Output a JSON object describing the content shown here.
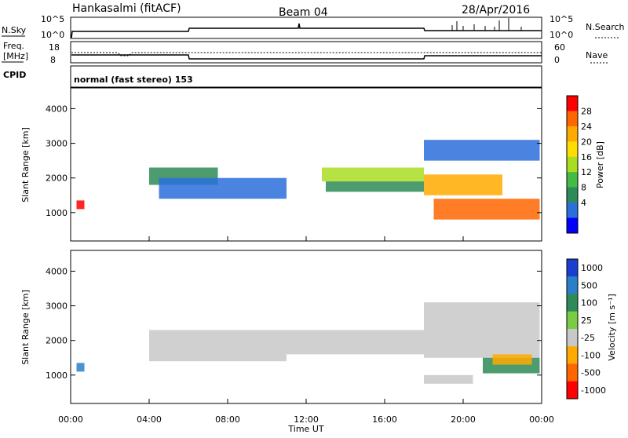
{
  "header": {
    "title": "Hankasalmi (fitACF)",
    "beam": "Beam 04",
    "date": "28/Apr/2016"
  },
  "strips": {
    "nsky_label": "N.Sky",
    "nsearch_label": "N.Search",
    "nsky_ticks": [
      "10^5",
      "10^0"
    ],
    "freq_label_1": "Freq.",
    "freq_label_2": "[MHz]",
    "freq_ticks": [
      "18",
      "8"
    ],
    "nave_label": "Nave",
    "nave_ticks": [
      "60",
      "0"
    ],
    "cpid_label": "CPID",
    "cpid_text": "normal (fast stereo) 153"
  },
  "axes": {
    "ylabel": "Slant Range [km]",
    "yticks": [
      "4000",
      "3000",
      "2000",
      "1000"
    ],
    "xlabel": "Time UT",
    "xticks": [
      "00:00",
      "04:00",
      "08:00",
      "12:00",
      "16:00",
      "20:00",
      "00:00"
    ]
  },
  "power_scale": {
    "label": "Power [dB]",
    "ticks": [
      "28",
      "24",
      "20",
      "16",
      "12",
      "8",
      "4"
    ],
    "colors": [
      "#ff0000",
      "#ff6600",
      "#ffaa00",
      "#ffdd00",
      "#aadd22",
      "#44bb44",
      "#2e8b57",
      "#2a6fdb",
      "#0000ff"
    ]
  },
  "velocity_scale": {
    "label": "Velocity [m s⁻¹]",
    "ticks": [
      "1000",
      "500",
      "100",
      "25",
      "-25",
      "-100",
      "-500",
      "-1000"
    ],
    "colors": [
      "#1a3fd0",
      "#2a80c8",
      "#2e8b57",
      "#7acc44",
      "#c8c8c8",
      "#ffaa00",
      "#ff6600",
      "#ff0000"
    ]
  },
  "chart_data": [
    {
      "type": "heatmap",
      "panel": "power",
      "ylim": [
        180,
        4600
      ],
      "xlim": [
        0,
        24
      ],
      "regions": [
        {
          "t0": 4.0,
          "t1": 7.5,
          "r0": 1800,
          "r1": 2300,
          "color": "#2e8b57"
        },
        {
          "t0": 4.5,
          "t1": 11.0,
          "r0": 1400,
          "r1": 2000,
          "color": "#2a6fdb"
        },
        {
          "t0": 12.8,
          "t1": 18.0,
          "r0": 1900,
          "r1": 2300,
          "color": "#aadd22"
        },
        {
          "t0": 13.0,
          "t1": 18.0,
          "r0": 1600,
          "r1": 1900,
          "color": "#2e8b57"
        },
        {
          "t0": 18.0,
          "t1": 22.0,
          "r0": 1500,
          "r1": 2100,
          "color": "#ffaa00"
        },
        {
          "t0": 18.0,
          "t1": 23.9,
          "r0": 2500,
          "r1": 3100,
          "color": "#2a6fdb"
        },
        {
          "t0": 18.5,
          "t1": 23.9,
          "r0": 800,
          "r1": 1400,
          "color": "#ff6600"
        },
        {
          "t0": 0.3,
          "t1": 0.7,
          "r0": 1100,
          "r1": 1350,
          "color": "#ff0000"
        }
      ]
    },
    {
      "type": "heatmap",
      "panel": "velocity",
      "ylim": [
        180,
        4600
      ],
      "xlim": [
        0,
        24
      ],
      "regions": [
        {
          "t0": 4.0,
          "t1": 11.0,
          "r0": 1400,
          "r1": 2300,
          "color": "#c8c8c8"
        },
        {
          "t0": 11.0,
          "t1": 18.0,
          "r0": 1600,
          "r1": 2300,
          "color": "#c8c8c8"
        },
        {
          "t0": 18.0,
          "t1": 23.9,
          "r0": 1500,
          "r1": 3100,
          "color": "#c8c8c8"
        },
        {
          "t0": 21.0,
          "t1": 23.9,
          "r0": 1050,
          "r1": 1500,
          "color": "#2e8b57"
        },
        {
          "t0": 21.5,
          "t1": 23.5,
          "r0": 1300,
          "r1": 1600,
          "color": "#ffaa00"
        },
        {
          "t0": 18.0,
          "t1": 20.5,
          "r0": 750,
          "r1": 1000,
          "color": "#c8c8c8"
        },
        {
          "t0": 0.3,
          "t1": 0.7,
          "r0": 1100,
          "r1": 1350,
          "color": "#2a80c8"
        }
      ]
    }
  ]
}
